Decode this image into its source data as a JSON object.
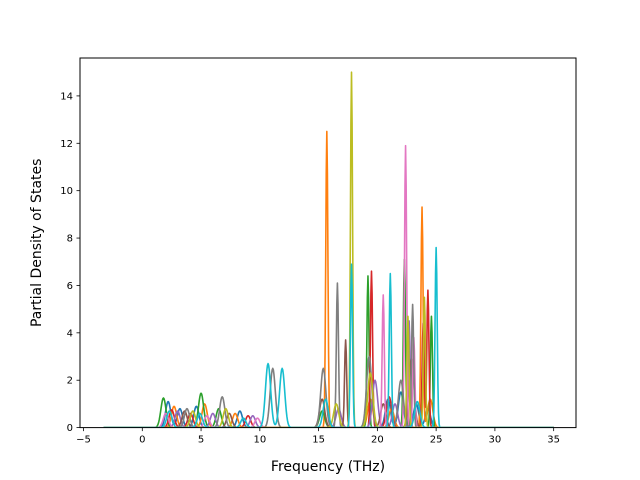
{
  "chart_data": {
    "type": "line",
    "title": "",
    "xlabel": "Frequency (THz)",
    "ylabel": "Partial Density of States",
    "xlim": [
      -5.3,
      36.9
    ],
    "ylim": [
      0,
      15.6
    ],
    "xticks": [
      -5,
      0,
      5,
      10,
      15,
      20,
      25,
      30,
      35
    ],
    "yticks": [
      0,
      2,
      4,
      6,
      8,
      10,
      12,
      14
    ],
    "data_range": [
      -3.3,
      35
    ],
    "grid": false,
    "legend": "none",
    "colors": [
      "#1f77b4",
      "#ff7f0e",
      "#2ca02c",
      "#d62728",
      "#9467bd",
      "#8c564b",
      "#e377c2",
      "#7f7f7f",
      "#bcbd22",
      "#17becf"
    ],
    "series": [
      {
        "color": "#1f77b4",
        "peaks": [
          [
            2.2,
            1.1
          ],
          [
            3.2,
            0.8
          ],
          [
            4.6,
            0.9
          ],
          [
            8.3,
            0.7
          ],
          [
            20.9,
            1.2
          ],
          [
            22.0,
            1.5
          ],
          [
            23.3,
            1.0
          ],
          [
            24.3,
            0.8
          ]
        ]
      },
      {
        "color": "#ff7f0e",
        "peaks": [
          [
            2.7,
            0.9
          ],
          [
            5.3,
            1.0
          ],
          [
            7.9,
            0.6
          ],
          [
            15.7,
            12.5
          ],
          [
            19.4,
            1.2
          ],
          [
            21.2,
            0.8
          ],
          [
            23.8,
            9.3
          ],
          [
            24.5,
            1.2
          ]
        ]
      },
      {
        "color": "#2ca02c",
        "peaks": [
          [
            1.8,
            1.25
          ],
          [
            5.0,
            1.45
          ],
          [
            6.5,
            0.8
          ],
          [
            15.3,
            0.7
          ],
          [
            19.2,
            6.4
          ],
          [
            22.3,
            7.1
          ],
          [
            24.6,
            4.7
          ]
        ]
      },
      {
        "color": "#d62728",
        "peaks": [
          [
            2.5,
            0.75
          ],
          [
            4.1,
            0.6
          ],
          [
            9.0,
            0.5
          ],
          [
            19.5,
            6.6
          ],
          [
            21.0,
            1.3
          ],
          [
            23.9,
            4.4
          ],
          [
            24.3,
            5.8
          ]
        ]
      },
      {
        "color": "#9467bd",
        "peaks": [
          [
            3.0,
            0.7
          ],
          [
            6.0,
            0.6
          ],
          [
            9.4,
            0.5
          ],
          [
            16.7,
            0.8
          ],
          [
            19.8,
            2.0
          ],
          [
            21.5,
            1.0
          ],
          [
            22.7,
            4.5
          ]
        ]
      },
      {
        "color": "#8c564b",
        "peaks": [
          [
            3.6,
            0.7
          ],
          [
            7.4,
            0.6
          ],
          [
            15.3,
            1.2
          ],
          [
            17.3,
            3.7
          ],
          [
            20.5,
            1.0
          ],
          [
            22.9,
            2.9
          ]
        ]
      },
      {
        "color": "#e377c2",
        "peaks": [
          [
            2.0,
            0.6
          ],
          [
            5.5,
            0.5
          ],
          [
            9.8,
            0.4
          ],
          [
            20.5,
            5.6
          ],
          [
            22.4,
            11.9
          ],
          [
            23.1,
            3.8
          ]
        ]
      },
      {
        "color": "#7f7f7f",
        "peaks": [
          [
            3.8,
            0.8
          ],
          [
            6.8,
            1.3
          ],
          [
            11.1,
            2.5
          ],
          [
            15.4,
            2.5
          ],
          [
            16.6,
            6.1
          ],
          [
            19.3,
            3.0
          ],
          [
            22.0,
            2.0
          ],
          [
            23.0,
            5.2
          ]
        ]
      },
      {
        "color": "#bcbd22",
        "peaks": [
          [
            4.3,
            0.7
          ],
          [
            7.1,
            0.8
          ],
          [
            16.5,
            1.0
          ],
          [
            17.8,
            15.0
          ],
          [
            19.4,
            2.3
          ],
          [
            22.6,
            4.7
          ],
          [
            24.0,
            5.5
          ]
        ]
      },
      {
        "color": "#17becf",
        "peaks": [
          [
            2.3,
            0.7
          ],
          [
            4.9,
            0.6
          ],
          [
            8.6,
            0.4
          ],
          [
            10.7,
            2.7
          ],
          [
            11.9,
            2.5
          ],
          [
            15.6,
            1.2
          ],
          [
            17.8,
            6.9
          ],
          [
            21.1,
            6.5
          ],
          [
            23.4,
            1.1
          ],
          [
            25.0,
            7.6
          ]
        ]
      }
    ]
  }
}
